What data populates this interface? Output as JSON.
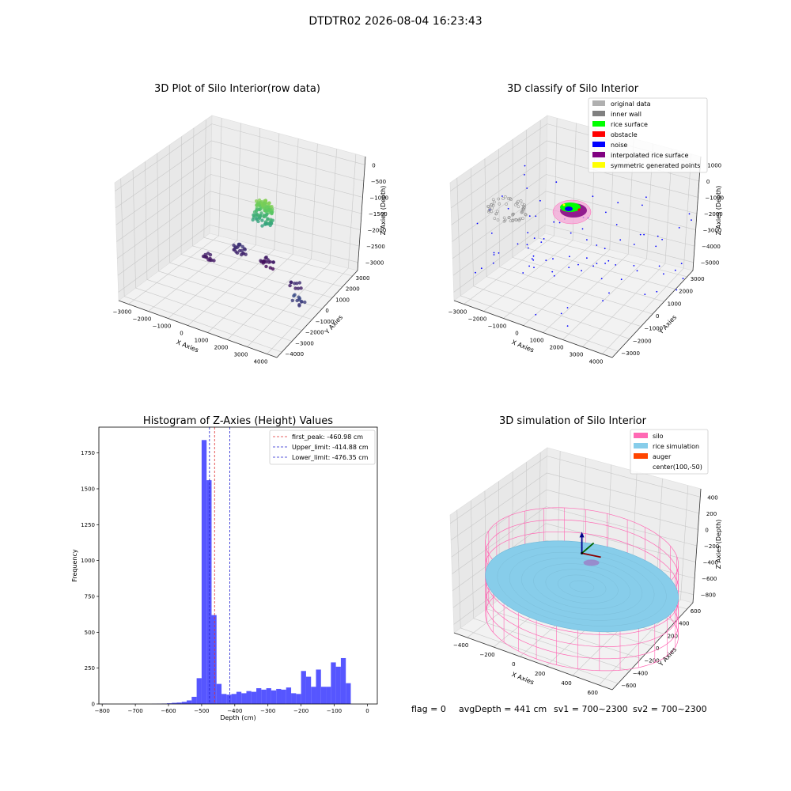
{
  "figure_title": "DTDTR02 2026-08-04 16:23:43",
  "status": {
    "flag": "flag = 0",
    "avg_depth": "avgDepth = 441 cm",
    "sv1": "sv1 = 700~2300",
    "sv2": "sv2 = 700~2300"
  },
  "colors": {
    "hist_bar": "#4d4dff",
    "first_peak": "#e03030",
    "limits": "#2020d0",
    "silo": "#ff69b4",
    "rice_simulation": "#87cdea",
    "auger": "#ff4500",
    "original_data": "#b0b0b0",
    "inner_wall": "#808080",
    "rice_surface": "#00ff00",
    "obstacle": "#ff0000",
    "noise": "#0000ff",
    "interpolated_rice_surface": "#800080",
    "symmetric_generated_points": "#ffff00"
  },
  "chart_data": [
    {
      "type": "scatter",
      "title": "3D Plot of Silo Interior(row data)",
      "xlabel": "X Axies",
      "ylabel": "Y Axies",
      "zlabel": "Z Axies (Depth)",
      "x_ticks": [
        "−3000",
        "−2000",
        "−1000",
        "0",
        "1000",
        "2000",
        "3000",
        "4000"
      ],
      "y_ticks": [
        "3000",
        "2000",
        "1000",
        "0",
        "−1000",
        "−2000",
        "−3000",
        "−4000"
      ],
      "z_ticks": [
        "0",
        "−500",
        "−1000",
        "−1500",
        "−2000",
        "−2500",
        "−3000"
      ],
      "xlim": [
        -3200,
        4200
      ],
      "ylim": [
        -4200,
        3800
      ],
      "zlim": [
        -3400,
        100
      ],
      "colormap": "viridis",
      "clusters": [
        {
          "x": 1300,
          "y": -600,
          "z": -700,
          "n": 70,
          "spread": 350
        },
        {
          "x": 1000,
          "y": -1000,
          "z": -1200,
          "n": 45,
          "spread": 450
        },
        {
          "x": -900,
          "y": -2500,
          "z": -2900,
          "n": 22,
          "spread": 350
        },
        {
          "x": 200,
          "y": -3000,
          "z": -3200,
          "n": 18,
          "spread": 300
        },
        {
          "x": 2200,
          "y": -1500,
          "z": -3000,
          "n": 10,
          "spread": 250
        },
        {
          "x": 3400,
          "y": 500,
          "z": -2700,
          "n": 12,
          "spread": 300
        },
        {
          "x": -1800,
          "y": -1500,
          "z": -3100,
          "n": 12,
          "spread": 300
        }
      ]
    },
    {
      "type": "scatter",
      "title": "3D classify of Silo Interior",
      "xlabel": "X Axies",
      "ylabel": "Y Axies",
      "zlabel": "Z Axies (Depth)",
      "x_ticks": [
        "−3000",
        "−2000",
        "−1000",
        "0",
        "1000",
        "2000",
        "3000",
        "4000"
      ],
      "y_ticks": [
        "3000",
        "2000",
        "1000",
        "0",
        "−1000",
        "−2000",
        "−3000"
      ],
      "z_ticks": [
        "1000",
        "0",
        "−1000",
        "−2000",
        "−3000",
        "−4000",
        "−5000"
      ],
      "xlim": [
        -3200,
        4200
      ],
      "ylim": [
        -3600,
        3600
      ],
      "zlim": [
        -5200,
        1200
      ],
      "legend": [
        "original data",
        "inner wall",
        "rice surface",
        "obstacle",
        "noise",
        "interpolated rice surface",
        "symmetric generated points"
      ],
      "legend_loc": "upper right",
      "noise_points": 90
    },
    {
      "type": "bar",
      "title": "Histogram of Z-Axies (Height) Values",
      "xlabel": "Depth (cm)",
      "ylabel": "Frequency",
      "xlim": [
        -810,
        30
      ],
      "ylim": [
        0,
        1930
      ],
      "x_ticks": [
        "−800",
        "−700",
        "−600",
        "−500",
        "−400",
        "−300",
        "−200",
        "−100",
        "0"
      ],
      "y_ticks": [
        "0",
        "250",
        "500",
        "750",
        "1000",
        "1250",
        "1500",
        "1750"
      ],
      "bin_edges": [
        -800,
        -785,
        -770,
        -755,
        -740,
        -725,
        -710,
        -695,
        -680,
        -665,
        -650,
        -635,
        -620,
        -605,
        -590,
        -575,
        -560,
        -545,
        -530,
        -515,
        -500,
        -485,
        -470,
        -455,
        -440,
        -425,
        -410,
        -395,
        -380,
        -365,
        -350,
        -335,
        -320,
        -305,
        -290,
        -275,
        -260,
        -245,
        -230,
        -215,
        -200,
        -185,
        -170,
        -155,
        -140,
        -125,
        -110,
        -95,
        -80,
        -65,
        -50,
        -35,
        -20,
        -5
      ],
      "counts": [
        1,
        0,
        0,
        0,
        0,
        0,
        1,
        0,
        0,
        0,
        1,
        2,
        3,
        5,
        8,
        10,
        15,
        25,
        50,
        180,
        1840,
        1560,
        620,
        140,
        70,
        65,
        70,
        85,
        75,
        90,
        85,
        110,
        100,
        110,
        95,
        105,
        100,
        115,
        75,
        70,
        230,
        190,
        120,
        240,
        120,
        120,
        290,
        260,
        320,
        145,
        0,
        0,
        0
      ],
      "legend": [
        {
          "label": "first_peak: -460.98 cm",
          "value": -460.98
        },
        {
          "label": "Upper_limit: -414.88 cm",
          "value": -414.88
        },
        {
          "label": "Lower_limit: -476.35 cm",
          "value": -476.35
        }
      ],
      "legend_loc": "upper right"
    },
    {
      "type": "scatter",
      "title": "3D simulation of Silo Interior",
      "xlabel": "X Axies",
      "ylabel": "Y Axies",
      "zlabel": "Z Axies (Depth)",
      "x_ticks": [
        "−400",
        "−200",
        "0",
        "200",
        "400",
        "600"
      ],
      "y_ticks": [
        "600",
        "400",
        "200",
        "0",
        "−200",
        "−400",
        "−600"
      ],
      "z_ticks": [
        "400",
        "200",
        "0",
        "−200",
        "−400",
        "−600",
        "−800"
      ],
      "xlim": [
        -550,
        750
      ],
      "ylim": [
        -700,
        700
      ],
      "zlim": [
        -900,
        500
      ],
      "legend": [
        "silo",
        "rice simulation",
        "auger",
        "center(100,-50)"
      ],
      "legend_loc": "upper right",
      "silo_radius": 700,
      "silo_top": -50,
      "silo_bottom": -900,
      "rice_surface_depth": -441,
      "center": [
        100,
        -50
      ]
    }
  ]
}
